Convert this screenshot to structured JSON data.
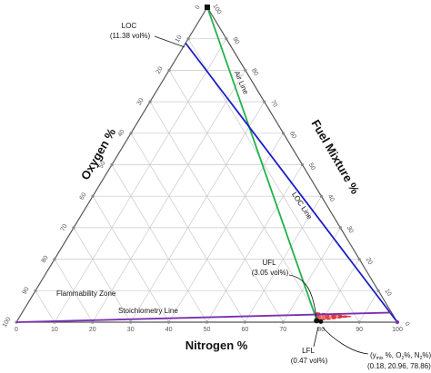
{
  "chart_data": {
    "type": "ternary",
    "axes": {
      "oxygen": "Oxygen %",
      "fuel": "Fuel Mixture %",
      "nitrogen": "Nitrogen %"
    },
    "tick_values": [
      0,
      10,
      20,
      30,
      40,
      50,
      60,
      70,
      80,
      90,
      100
    ],
    "series": [
      {
        "name": "Air Line",
        "points": [
          [
            0,
            100,
            0
          ],
          [
            20.96,
            0,
            79.04
          ]
        ]
      },
      {
        "name": "LOC Line",
        "points": [
          [
            11.38,
            88.62,
            0
          ],
          [
            0,
            0,
            100
          ]
        ]
      },
      {
        "name": "Stoichiometry Line",
        "points": [
          [
            100,
            0,
            0
          ],
          [
            0,
            3.05,
            96.95
          ]
        ]
      },
      {
        "name": "Flammability Zone",
        "points": [
          [
            20.96,
            0.47,
            78.57
          ],
          [
            20.34,
            3.05,
            76.61
          ],
          [
            11.38,
            1.8,
            86.82
          ],
          [
            20.96,
            0.47,
            78.57
          ]
        ]
      }
    ],
    "annotations": {
      "loc": "LOC\n(11.38 vol%)",
      "ufl": "UFL\n(3.05 vol%)",
      "lfl": "LFL\n(0.47 vol%)",
      "flammability_zone": "Flammability Zone",
      "stoich": "Stoichiometry Line",
      "air_line": "Air Line",
      "loc_line": "LOC Line",
      "ymix": "(y",
      "ymix_sub": "mix",
      "ymix_rest": " %, O",
      "ymix_sub2": "2",
      "ymix_rest2": "%, N",
      "ymix_sub3": "2",
      "ymix_rest3": "%)",
      "ymix_values": "(0.18, 20.96, 78.86)"
    },
    "colors": {
      "air_line": "#1fb34a",
      "loc_line": "#1c1cc8",
      "stoich_line": "#7a2fb0",
      "zone": "#e03030",
      "grid": "#c9c9c9",
      "frame": "#555555"
    }
  }
}
